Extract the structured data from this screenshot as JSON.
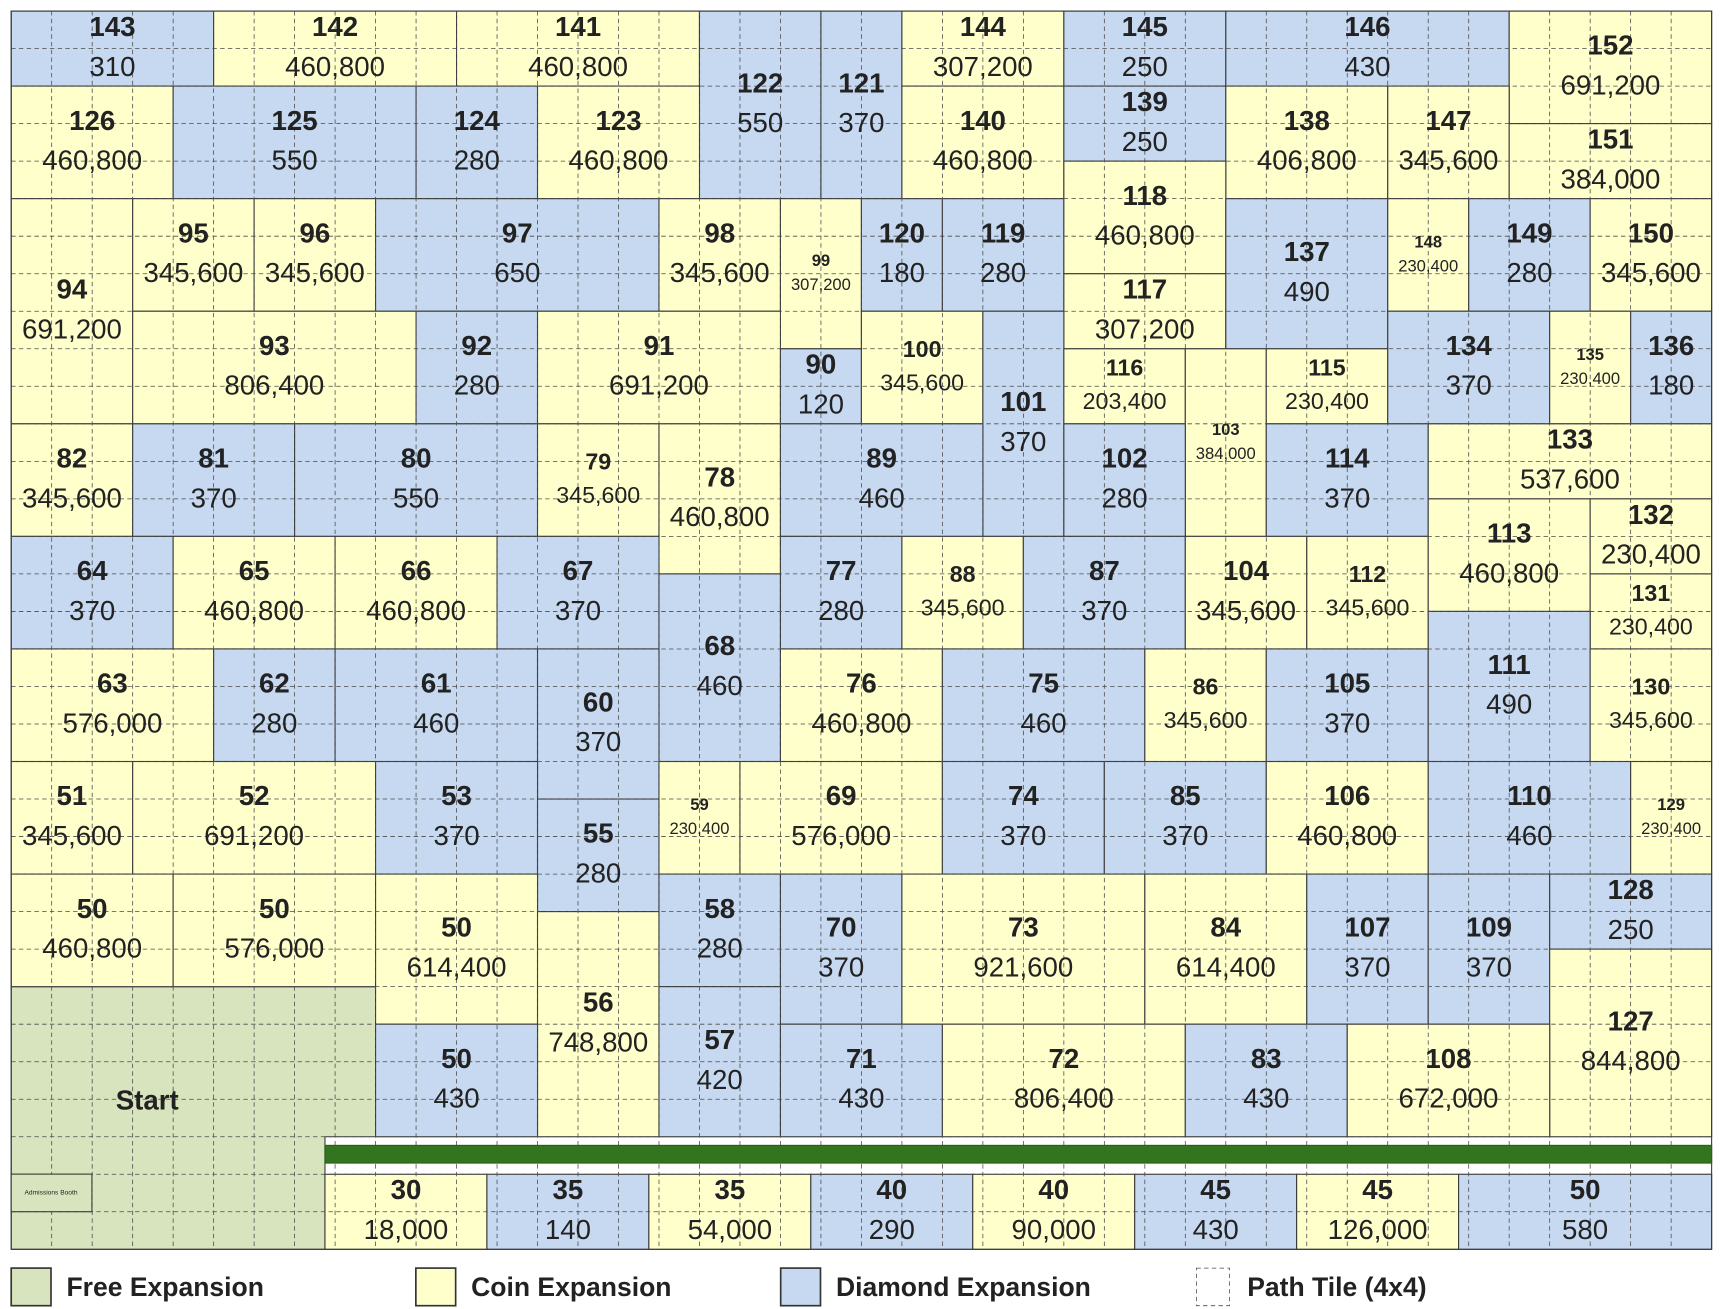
{
  "map": {
    "tiles": [
      {
        "id": "143",
        "cost": "310",
        "type": "diamond"
      },
      {
        "id": "142",
        "cost": "460,800",
        "type": "coin"
      },
      {
        "id": "141",
        "cost": "460,800",
        "type": "coin"
      },
      {
        "id": "122",
        "cost": "550",
        "type": "diamond"
      },
      {
        "id": "121",
        "cost": "370",
        "type": "diamond"
      },
      {
        "id": "144",
        "cost": "307,200",
        "type": "coin"
      },
      {
        "id": "145",
        "cost": "250",
        "type": "diamond"
      },
      {
        "id": "146",
        "cost": "430",
        "type": "diamond"
      },
      {
        "id": "152",
        "cost": "691,200",
        "type": "coin"
      },
      {
        "id": "126",
        "cost": "460,800",
        "type": "coin"
      },
      {
        "id": "125",
        "cost": "550",
        "type": "diamond"
      },
      {
        "id": "124",
        "cost": "280",
        "type": "diamond"
      },
      {
        "id": "123",
        "cost": "460,800",
        "type": "coin"
      },
      {
        "id": "140",
        "cost": "460,800",
        "type": "coin"
      },
      {
        "id": "139",
        "cost": "250",
        "type": "diamond"
      },
      {
        "id": "138",
        "cost": "406,800",
        "type": "coin"
      },
      {
        "id": "147",
        "cost": "345,600",
        "type": "coin"
      },
      {
        "id": "151",
        "cost": "384,000",
        "type": "coin"
      },
      {
        "id": "94",
        "cost": "691,200",
        "type": "coin"
      },
      {
        "id": "95",
        "cost": "345,600",
        "type": "coin"
      },
      {
        "id": "96",
        "cost": "345,600",
        "type": "coin"
      },
      {
        "id": "97",
        "cost": "650",
        "type": "diamond"
      },
      {
        "id": "98",
        "cost": "345,600",
        "type": "coin"
      },
      {
        "id": "99",
        "cost": "307,200",
        "type": "coin"
      },
      {
        "id": "120",
        "cost": "180",
        "type": "diamond"
      },
      {
        "id": "119",
        "cost": "280",
        "type": "diamond"
      },
      {
        "id": "118",
        "cost": "460,800",
        "type": "coin"
      },
      {
        "id": "117",
        "cost": "307,200",
        "type": "coin"
      },
      {
        "id": "137",
        "cost": "490",
        "type": "diamond"
      },
      {
        "id": "148",
        "cost": "230,400",
        "type": "coin"
      },
      {
        "id": "149",
        "cost": "280",
        "type": "diamond"
      },
      {
        "id": "150",
        "cost": "345,600",
        "type": "coin"
      },
      {
        "id": "93",
        "cost": "806,400",
        "type": "coin"
      },
      {
        "id": "92",
        "cost": "280",
        "type": "diamond"
      },
      {
        "id": "91",
        "cost": "691,200",
        "type": "coin"
      },
      {
        "id": "90",
        "cost": "120",
        "type": "diamond"
      },
      {
        "id": "100",
        "cost": "345,600",
        "type": "coin"
      },
      {
        "id": "101",
        "cost": "370",
        "type": "diamond"
      },
      {
        "id": "116",
        "cost": "203,400",
        "type": "coin"
      },
      {
        "id": "103",
        "cost": "384,000",
        "type": "coin"
      },
      {
        "id": "115",
        "cost": "230,400",
        "type": "coin"
      },
      {
        "id": "134",
        "cost": "370",
        "type": "diamond"
      },
      {
        "id": "135",
        "cost": "230,400",
        "type": "coin"
      },
      {
        "id": "136",
        "cost": "180",
        "type": "diamond"
      },
      {
        "id": "82",
        "cost": "345,600",
        "type": "coin"
      },
      {
        "id": "81",
        "cost": "370",
        "type": "diamond"
      },
      {
        "id": "80",
        "cost": "550",
        "type": "diamond"
      },
      {
        "id": "79",
        "cost": "345,600",
        "type": "coin"
      },
      {
        "id": "78",
        "cost": "460,800",
        "type": "coin"
      },
      {
        "id": "89",
        "cost": "460",
        "type": "diamond"
      },
      {
        "id": "102",
        "cost": "280",
        "type": "diamond"
      },
      {
        "id": "114",
        "cost": "370",
        "type": "diamond"
      },
      {
        "id": "133",
        "cost": "537,600",
        "type": "coin"
      },
      {
        "id": "64",
        "cost": "370",
        "type": "diamond"
      },
      {
        "id": "65",
        "cost": "460,800",
        "type": "coin"
      },
      {
        "id": "66",
        "cost": "460,800",
        "type": "coin"
      },
      {
        "id": "67",
        "cost": "370",
        "type": "diamond"
      },
      {
        "id": "68",
        "cost": "460",
        "type": "diamond"
      },
      {
        "id": "77",
        "cost": "280",
        "type": "diamond"
      },
      {
        "id": "88",
        "cost": "345,600",
        "type": "coin"
      },
      {
        "id": "87",
        "cost": "370",
        "type": "diamond"
      },
      {
        "id": "104",
        "cost": "345,600",
        "type": "coin"
      },
      {
        "id": "112",
        "cost": "345,600",
        "type": "coin"
      },
      {
        "id": "113",
        "cost": "460,800",
        "type": "coin"
      },
      {
        "id": "132",
        "cost": "230,400",
        "type": "coin"
      },
      {
        "id": "131",
        "cost": "230,400",
        "type": "coin"
      },
      {
        "id": "63",
        "cost": "576,000",
        "type": "coin"
      },
      {
        "id": "62",
        "cost": "280",
        "type": "diamond"
      },
      {
        "id": "61",
        "cost": "460",
        "type": "diamond"
      },
      {
        "id": "60",
        "cost": "370",
        "type": "diamond"
      },
      {
        "id": "76",
        "cost": "460,800",
        "type": "coin"
      },
      {
        "id": "75",
        "cost": "460",
        "type": "diamond"
      },
      {
        "id": "86",
        "cost": "345,600",
        "type": "coin"
      },
      {
        "id": "105",
        "cost": "370",
        "type": "diamond"
      },
      {
        "id": "111",
        "cost": "490",
        "type": "diamond"
      },
      {
        "id": "130",
        "cost": "345,600",
        "type": "coin"
      },
      {
        "id": "51",
        "cost": "345,600",
        "type": "coin"
      },
      {
        "id": "52",
        "cost": "691,200",
        "type": "coin"
      },
      {
        "id": "53",
        "cost": "370",
        "type": "diamond"
      },
      {
        "id": "55",
        "cost": "280",
        "type": "diamond"
      },
      {
        "id": "59",
        "cost": "230,400",
        "type": "coin"
      },
      {
        "id": "69",
        "cost": "576,000",
        "type": "coin"
      },
      {
        "id": "74",
        "cost": "370",
        "type": "diamond"
      },
      {
        "id": "85",
        "cost": "370",
        "type": "diamond"
      },
      {
        "id": "106",
        "cost": "460,800",
        "type": "coin"
      },
      {
        "id": "110",
        "cost": "460",
        "type": "diamond"
      },
      {
        "id": "129",
        "cost": "230,400",
        "type": "coin"
      },
      {
        "id": "50",
        "cost": "460,800",
        "type": "coin"
      },
      {
        "id": "50",
        "cost": "576,000",
        "type": "coin"
      },
      {
        "id": "50",
        "cost": "614,400",
        "type": "coin"
      },
      {
        "id": "56",
        "cost": "748,800",
        "type": "coin"
      },
      {
        "id": "58",
        "cost": "280",
        "type": "diamond"
      },
      {
        "id": "70",
        "cost": "370",
        "type": "diamond"
      },
      {
        "id": "73",
        "cost": "921,600",
        "type": "coin"
      },
      {
        "id": "84",
        "cost": "614,400",
        "type": "coin"
      },
      {
        "id": "107",
        "cost": "370",
        "type": "diamond"
      },
      {
        "id": "109",
        "cost": "370",
        "type": "diamond"
      },
      {
        "id": "128",
        "cost": "250",
        "type": "diamond"
      },
      {
        "id": "127",
        "cost": "844,800",
        "type": "coin"
      },
      {
        "id": "50",
        "cost": "430",
        "type": "diamond"
      },
      {
        "id": "57",
        "cost": "420",
        "type": "diamond"
      },
      {
        "id": "71",
        "cost": "430",
        "type": "diamond"
      },
      {
        "id": "72",
        "cost": "806,400",
        "type": "coin"
      },
      {
        "id": "83",
        "cost": "430",
        "type": "diamond"
      },
      {
        "id": "108",
        "cost": "672,000",
        "type": "coin"
      },
      {
        "id": "30",
        "cost": "18,000",
        "type": "coin"
      },
      {
        "id": "35",
        "cost": "140",
        "type": "diamond"
      },
      {
        "id": "35",
        "cost": "54,000",
        "type": "coin"
      },
      {
        "id": "40",
        "cost": "290",
        "type": "diamond"
      },
      {
        "id": "40",
        "cost": "90,000",
        "type": "coin"
      },
      {
        "id": "45",
        "cost": "430",
        "type": "diamond"
      },
      {
        "id": "45",
        "cost": "126,000",
        "type": "coin"
      },
      {
        "id": "50",
        "cost": "580",
        "type": "diamond"
      }
    ],
    "start_label": "Start",
    "booth_label": "Admissions Booth"
  },
  "legend": [
    {
      "label": "Free Expansion",
      "type": "free"
    },
    {
      "label": "Coin Expansion",
      "type": "coin"
    },
    {
      "label": "Diamond Expansion",
      "type": "diamond"
    },
    {
      "label": "Path Tile (4x4)",
      "type": "path"
    }
  ]
}
